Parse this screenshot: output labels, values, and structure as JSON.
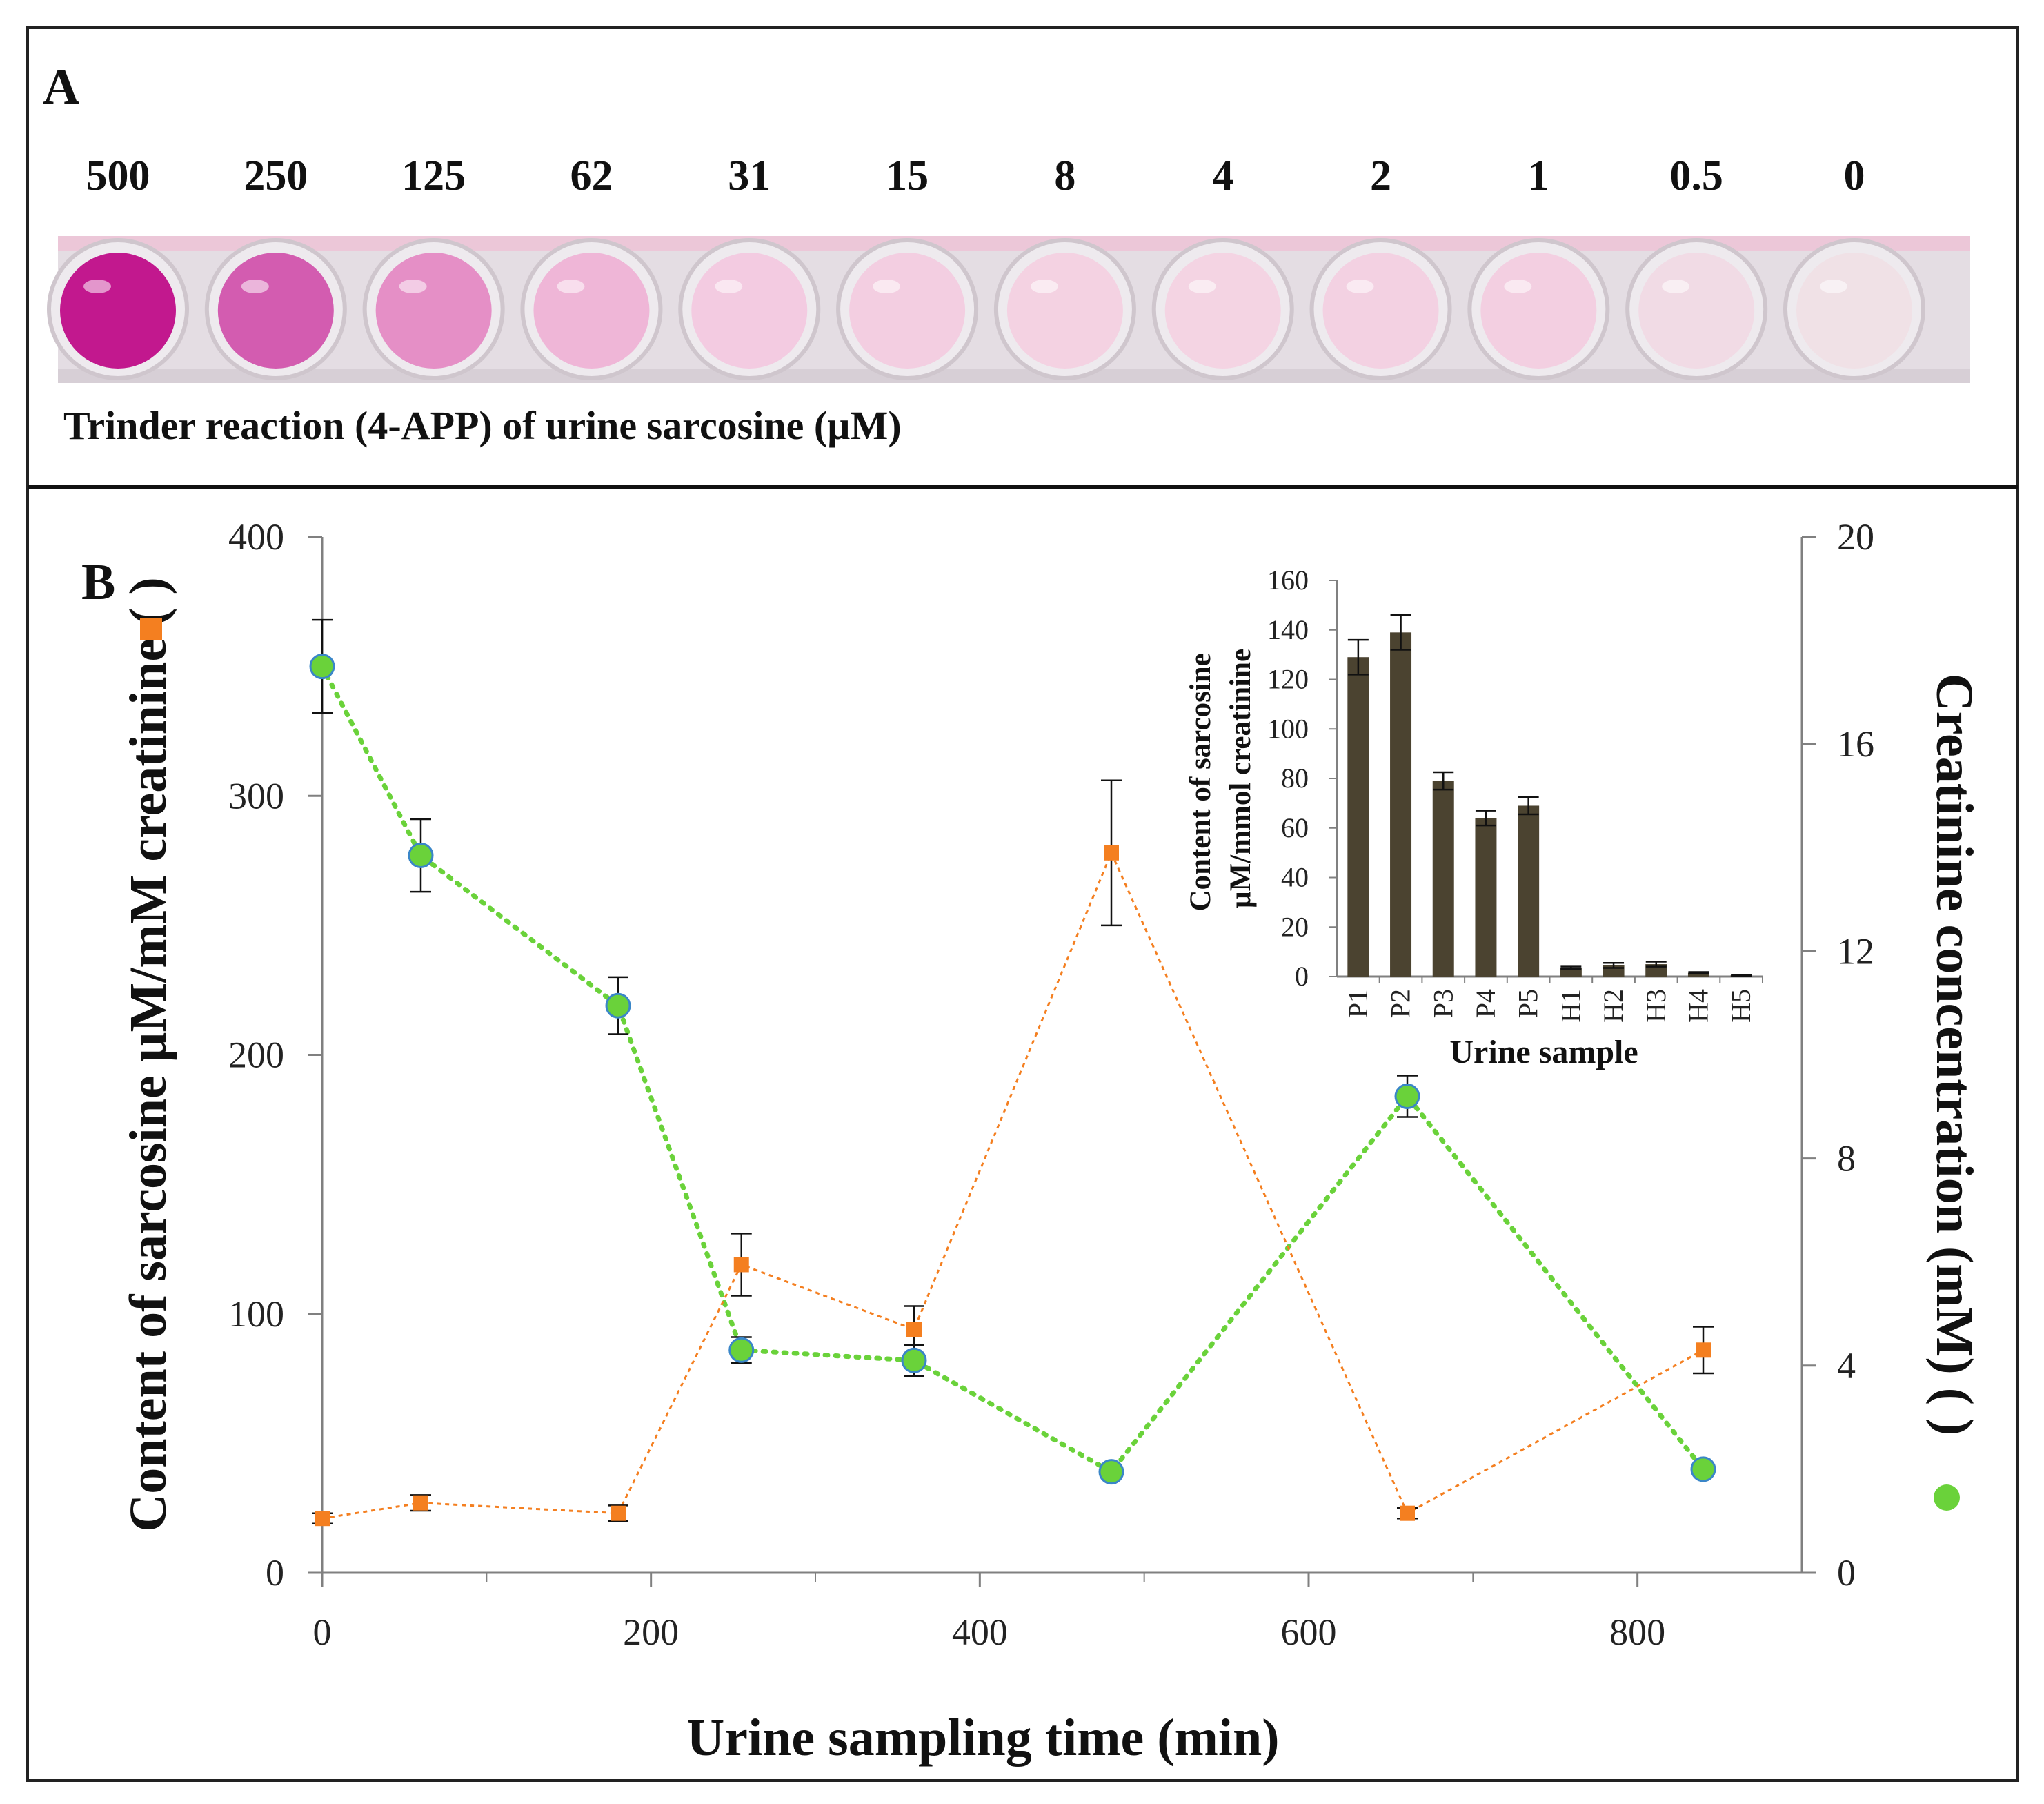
{
  "panel_a": {
    "label": "A",
    "concentrations": [
      "500",
      "250",
      "125",
      "62",
      "31",
      "15",
      "8",
      "4",
      "2",
      "1",
      "0.5",
      "0"
    ],
    "caption": "Trinder  reaction (4-APP) of urine  sarcosine (µM)",
    "well_colors": [
      "#c2188e",
      "#d35cb0",
      "#e58fc6",
      "#efb6d7",
      "#f3cbe1",
      "#f3cee1",
      "#f4d2e2",
      "#f4d4e3",
      "#f3d1e2",
      "#f3cfe1",
      "#f1dbe5",
      "#f0e1e6"
    ]
  },
  "panel_b": {
    "label": "B"
  },
  "chart_data": [
    {
      "type": "line",
      "name": "main",
      "title": "",
      "xlabel": "Urine sampling time (min)",
      "ylabel": "Content of sarcosine µM/mM creatinine ( )",
      "y2label": "Creatinine concentration (mM) ( )",
      "xlim": [
        0,
        900
      ],
      "ylim": [
        0,
        400
      ],
      "y2lim": [
        0,
        20
      ],
      "xticks": [
        "0",
        "200",
        "400",
        "600",
        "800"
      ],
      "yticks": [
        "0",
        "100",
        "200",
        "300",
        "400"
      ],
      "y2ticks": [
        "0",
        "4",
        "8",
        "12",
        "16",
        "20"
      ],
      "series": [
        {
          "name": "sarcosine",
          "axis": "left",
          "marker": "square",
          "color": "#f47f20",
          "x": [
            0,
            60,
            180,
            255,
            360,
            480,
            660,
            840
          ],
          "values": [
            21,
            27,
            23,
            119,
            94,
            278,
            23,
            86
          ],
          "errors": [
            2,
            3,
            3,
            12,
            9,
            28,
            2,
            9
          ]
        },
        {
          "name": "creatinine",
          "axis": "right",
          "marker": "circle",
          "color": "#6ad23a",
          "edge_color": "#3a86c8",
          "x": [
            0,
            60,
            180,
            255,
            360,
            480,
            660,
            840
          ],
          "values": [
            17.5,
            13.85,
            10.95,
            4.3,
            4.1,
            1.95,
            9.2,
            2.0
          ],
          "errors": [
            0.9,
            0.7,
            0.55,
            0.25,
            0.3,
            0.1,
            0.4,
            0.1
          ]
        }
      ]
    },
    {
      "type": "bar",
      "name": "inset",
      "title": "",
      "xlabel": "Urine sample",
      "ylabel_line1": "Content of sarcosine",
      "ylabel_line2": "µM/mmol creatinine",
      "ylim": [
        0,
        160
      ],
      "yticks": [
        "0",
        "20",
        "40",
        "60",
        "80",
        "100",
        "120",
        "140",
        "160"
      ],
      "categories": [
        "P1",
        "P2",
        "P3",
        "P4",
        "P5",
        "H1",
        "H2",
        "H3",
        "H4",
        "H5"
      ],
      "values": [
        129,
        139,
        79,
        64,
        69,
        3.5,
        4.5,
        5,
        1.5,
        0.5
      ],
      "errors": [
        7,
        7,
        3.5,
        3,
        3.5,
        0.5,
        1,
        1,
        0.3,
        0.2
      ],
      "color": "#4b4330"
    }
  ]
}
